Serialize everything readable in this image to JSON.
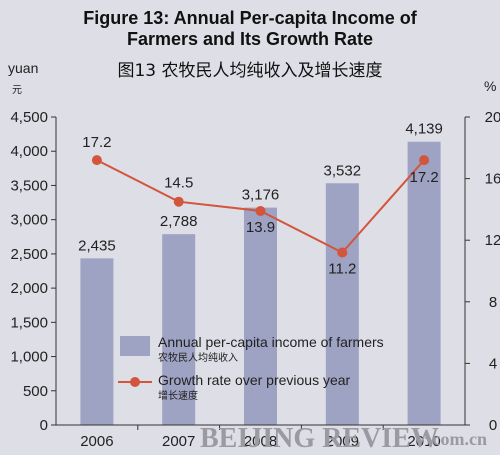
{
  "title_en_line1": "Figure 13: Annual Per-capita Income of",
  "title_en_line2": "Farmers and Its Growth Rate",
  "title_cn": "图13  农牧民人均纯收入及增长速度",
  "left_axis_unit": "yuan",
  "left_axis_unit_cn": "元",
  "right_axis_unit": "%",
  "watermark": "BEIJING REVIEW",
  "watermark_suffix": ".com.cn",
  "legend": {
    "bar_en": "Annual per-capita income of farmers",
    "bar_cn": "农牧民人均纯收入",
    "line_en": "Growth rate over previous year",
    "line_cn": "增长速度"
  },
  "colors": {
    "bar": "#9ea2c3",
    "line": "#d2553c",
    "background": "#dedfe6"
  },
  "chart_data": {
    "type": "bar",
    "categories": [
      "2006",
      "2007",
      "2008",
      "2009",
      "2010"
    ],
    "series": [
      {
        "name": "Annual per-capita income of farmers",
        "type": "bar",
        "axis": "left",
        "values": [
          2435,
          2788,
          3176,
          3532,
          4139
        ],
        "labels": [
          "2,435",
          "2,788",
          "3,176",
          "3,532",
          "4,139"
        ]
      },
      {
        "name": "Growth rate over previous year",
        "type": "line",
        "axis": "right",
        "values": [
          17.2,
          14.5,
          13.9,
          11.2,
          17.2
        ],
        "labels": [
          "17.2",
          "14.5",
          "13.9",
          "11.2",
          "17.2"
        ]
      }
    ],
    "ylim_left": [
      0,
      4500
    ],
    "yticks_left": [
      "0",
      "500",
      "1,000",
      "1,500",
      "2,000",
      "2,500",
      "3,000",
      "3,500",
      "4,000",
      "4,500"
    ],
    "ylim_right": [
      0,
      20
    ],
    "yticks_right": [
      "0",
      "4",
      "8",
      "12",
      "16",
      "20"
    ],
    "grid": false,
    "legend_position": "bottom-center"
  }
}
